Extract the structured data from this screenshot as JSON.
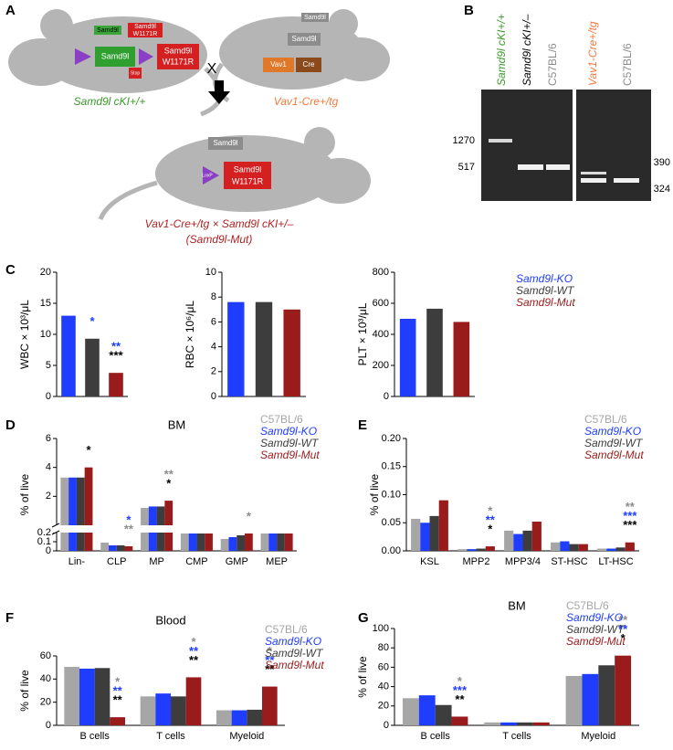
{
  "panels": [
    "A",
    "B",
    "C",
    "D",
    "E",
    "F",
    "G"
  ],
  "diagram": {
    "gene": "Samd9l",
    "mutant_gene": "Samd9l",
    "mutation": "W1171R",
    "stop": "Stop",
    "loxp": "LoxP",
    "vav1": "Vav1",
    "cre": "Cre",
    "cross": "X",
    "parent1": "Samd9l cKI+/+",
    "parent2": "Vav1-Cre+/tg",
    "offspring": "Vav1-Cre+/tg × Samd9l cKI+/–",
    "offspring_name": "(Samd9l-Mut)"
  },
  "gel": {
    "lanes": [
      "Samd9l cKI+/+",
      "Samd9l cKI+/–",
      "C57BL/6",
      "Vav1-Cre+/tg",
      "C57BL/6"
    ],
    "lane_colors": [
      "#3a9a2a",
      "#000000",
      "#8c8c8c",
      "#f07a3c",
      "#8c8c8c"
    ],
    "markers_left": [
      1270,
      517
    ],
    "markers_right": [
      390,
      324
    ]
  },
  "chart_data": [
    {
      "type": "bar",
      "ylabel": "WBC × 10³/μL",
      "ylim": [
        0,
        20
      ],
      "yticks": [
        0,
        5,
        10,
        15,
        20
      ],
      "series": [
        {
          "name": "Samd9l-KO",
          "color": "#1f3dff",
          "values": [
            13.0
          ]
        },
        {
          "name": "Samd9l-WT",
          "color": "#3d3d3d",
          "values": [
            9.3
          ]
        },
        {
          "name": "Samd9l-Mut",
          "color": "#991b1b",
          "values": [
            3.8
          ]
        }
      ],
      "annotations": [
        {
          "series": "Samd9l-WT",
          "text": "*",
          "color": "#1f3dff"
        },
        {
          "series": "Samd9l-Mut",
          "text": "***",
          "color": "#000000"
        },
        {
          "series": "Samd9l-Mut",
          "text": "**",
          "color": "#1f3dff"
        }
      ]
    },
    {
      "type": "bar",
      "ylabel": "RBC × 10⁶/μL",
      "ylim": [
        0,
        10
      ],
      "yticks": [
        0,
        2,
        4,
        6,
        8,
        10
      ],
      "series": [
        {
          "name": "Samd9l-KO",
          "color": "#1f3dff",
          "values": [
            7.6
          ]
        },
        {
          "name": "Samd9l-WT",
          "color": "#3d3d3d",
          "values": [
            7.6
          ]
        },
        {
          "name": "Samd9l-Mut",
          "color": "#991b1b",
          "values": [
            7.0
          ]
        }
      ]
    },
    {
      "type": "bar",
      "ylabel": "PLT × 10³/μL",
      "ylim": [
        0,
        800
      ],
      "yticks": [
        0,
        200,
        400,
        600,
        800
      ],
      "legend": true,
      "series": [
        {
          "name": "Samd9l-KO",
          "color": "#1f3dff",
          "values": [
            500
          ]
        },
        {
          "name": "Samd9l-WT",
          "color": "#3d3d3d",
          "values": [
            565
          ]
        },
        {
          "name": "Samd9l-Mut",
          "color": "#991b1b",
          "values": [
            480
          ]
        }
      ]
    },
    {
      "type": "bar",
      "title": "BM",
      "ylabel": "% of live",
      "ylim": [
        0,
        6
      ],
      "ybreak": 0.2,
      "yticks": [
        0,
        0.1,
        0.2,
        2,
        4,
        6
      ],
      "legend": true,
      "categories": [
        "Lin-",
        "CLP",
        "MP",
        "CMP",
        "GMP",
        "MEP"
      ],
      "series": [
        {
          "name": "C57BL/6",
          "color": "#a6a6a6",
          "values": [
            3.3,
            0.09,
            1.2,
            0.19,
            0.13,
            0.19
          ]
        },
        {
          "name": "Samd9l-KO",
          "color": "#1f3dff",
          "values": [
            3.3,
            0.06,
            1.3,
            0.19,
            0.15,
            0.19
          ]
        },
        {
          "name": "Samd9l-WT",
          "color": "#3d3d3d",
          "values": [
            3.3,
            0.06,
            1.3,
            0.19,
            0.17,
            0.19
          ]
        },
        {
          "name": "Samd9l-Mut",
          "color": "#991b1b",
          "values": [
            4.0,
            0.05,
            1.7,
            0.19,
            0.19,
            0.19
          ]
        }
      ],
      "annotations": [
        {
          "category": "Lin-",
          "series": "Samd9l-Mut",
          "text": "*",
          "color": "#000000"
        },
        {
          "category": "CLP",
          "series": "Samd9l-Mut",
          "text": "**",
          "color": "#8c8c8c"
        },
        {
          "category": "CLP",
          "series": "Samd9l-Mut",
          "text": "*",
          "color": "#1f3dff"
        },
        {
          "category": "MP",
          "series": "Samd9l-Mut",
          "text": "*",
          "color": "#000000"
        },
        {
          "category": "MP",
          "series": "Samd9l-Mut",
          "text": "**",
          "color": "#8c8c8c"
        },
        {
          "category": "GMP",
          "series": "Samd9l-Mut",
          "text": "*",
          "color": "#8c8c8c"
        }
      ]
    },
    {
      "type": "bar",
      "ylabel": "% of live",
      "ylim": [
        0,
        0.2
      ],
      "legend": true,
      "yticks": [
        {
          "value": 0,
          "label": "0.00"
        },
        {
          "value": 0.05,
          "label": "0.05"
        },
        {
          "value": 0.1,
          "label": "0.10"
        },
        {
          "value": 0.15,
          "label": "0.15"
        },
        {
          "value": 0.2,
          "label": "0.20"
        }
      ],
      "categories": [
        "KSL",
        "MPP2",
        "MPP3/4",
        "ST-HSC",
        "LT-HSC"
      ],
      "series": [
        {
          "name": "C57BL/6",
          "color": "#a6a6a6",
          "values": [
            0.057,
            0.003,
            0.036,
            0.015,
            0.004
          ]
        },
        {
          "name": "Samd9l-KO",
          "color": "#1f3dff",
          "values": [
            0.05,
            0.003,
            0.03,
            0.017,
            0.004
          ]
        },
        {
          "name": "Samd9l-WT",
          "color": "#3d3d3d",
          "values": [
            0.062,
            0.004,
            0.036,
            0.012,
            0.006
          ]
        },
        {
          "name": "Samd9l-Mut",
          "color": "#991b1b",
          "values": [
            0.09,
            0.008,
            0.052,
            0.012,
            0.015
          ]
        }
      ],
      "annotations": [
        {
          "category": "MPP2",
          "series": "Samd9l-Mut",
          "text": "*",
          "color": "#000000"
        },
        {
          "category": "MPP2",
          "series": "Samd9l-Mut",
          "text": "**",
          "color": "#1f3dff"
        },
        {
          "category": "MPP2",
          "series": "Samd9l-Mut",
          "text": "*",
          "color": "#8c8c8c"
        },
        {
          "category": "LT-HSC",
          "series": "Samd9l-Mut",
          "text": "***",
          "color": "#000000"
        },
        {
          "category": "LT-HSC",
          "series": "Samd9l-Mut",
          "text": "***",
          "color": "#1f3dff"
        },
        {
          "category": "LT-HSC",
          "series": "Samd9l-Mut",
          "text": "**",
          "color": "#8c8c8c"
        }
      ]
    },
    {
      "type": "bar",
      "title": "Blood",
      "ylabel": "% of live",
      "ylim": [
        0,
        60
      ],
      "yticks": [
        0,
        20,
        40,
        60
      ],
      "legend": true,
      "categories": [
        "B cells",
        "T cells",
        "Myeloid"
      ],
      "series": [
        {
          "name": "C57BL/6",
          "color": "#a6a6a6",
          "values": [
            50.5,
            25,
            13
          ]
        },
        {
          "name": "Samd9l-KO",
          "color": "#1f3dff",
          "values": [
            49,
            27.5,
            13
          ]
        },
        {
          "name": "Samd9l-WT",
          "color": "#3d3d3d",
          "values": [
            49.5,
            25,
            13.5
          ]
        },
        {
          "name": "Samd9l-Mut",
          "color": "#991b1b",
          "values": [
            7,
            41.5,
            33.5
          ]
        }
      ],
      "annotations": [
        {
          "category": "B cells",
          "series": "Samd9l-Mut",
          "text": "**",
          "color": "#000000"
        },
        {
          "category": "B cells",
          "series": "Samd9l-Mut",
          "text": "**",
          "color": "#1f3dff"
        },
        {
          "category": "B cells",
          "series": "Samd9l-Mut",
          "text": "*",
          "color": "#8c8c8c"
        },
        {
          "category": "T cells",
          "series": "Samd9l-Mut",
          "text": "**",
          "color": "#000000"
        },
        {
          "category": "T cells",
          "series": "Samd9l-Mut",
          "text": "**",
          "color": "#1f3dff"
        },
        {
          "category": "T cells",
          "series": "Samd9l-Mut",
          "text": "*",
          "color": "#8c8c8c"
        },
        {
          "category": "Myeloid",
          "series": "Samd9l-Mut",
          "text": "**",
          "color": "#000000"
        },
        {
          "category": "Myeloid",
          "series": "Samd9l-Mut",
          "text": "**",
          "color": "#1f3dff"
        },
        {
          "category": "Myeloid",
          "series": "Samd9l-Mut",
          "text": "*",
          "color": "#8c8c8c"
        }
      ]
    },
    {
      "type": "bar",
      "title": "BM",
      "ylabel": "% of live",
      "ylim": [
        0,
        100
      ],
      "yticks": [
        0,
        20,
        40,
        60,
        80,
        100
      ],
      "legend": true,
      "categories": [
        "B cells",
        "T cells",
        "Myeloid"
      ],
      "series": [
        {
          "name": "C57BL/6",
          "color": "#a6a6a6",
          "values": [
            28,
            3,
            51
          ]
        },
        {
          "name": "Samd9l-KO",
          "color": "#1f3dff",
          "values": [
            31,
            3,
            53
          ]
        },
        {
          "name": "Samd9l-WT",
          "color": "#3d3d3d",
          "values": [
            21,
            3,
            62
          ]
        },
        {
          "name": "Samd9l-Mut",
          "color": "#991b1b",
          "values": [
            9,
            3,
            72
          ]
        }
      ],
      "annotations": [
        {
          "category": "B cells",
          "series": "Samd9l-Mut",
          "text": "**",
          "color": "#000000"
        },
        {
          "category": "B cells",
          "series": "Samd9l-Mut",
          "text": "***",
          "color": "#1f3dff"
        },
        {
          "category": "B cells",
          "series": "Samd9l-Mut",
          "text": "*",
          "color": "#8c8c8c"
        },
        {
          "category": "Myeloid",
          "series": "Samd9l-Mut",
          "text": "*",
          "color": "#000000"
        },
        {
          "category": "Myeloid",
          "series": "Samd9l-Mut",
          "text": "**",
          "color": "#1f3dff"
        },
        {
          "category": "Myeloid",
          "series": "Samd9l-Mut",
          "text": "**",
          "color": "#8c8c8c"
        }
      ]
    }
  ]
}
